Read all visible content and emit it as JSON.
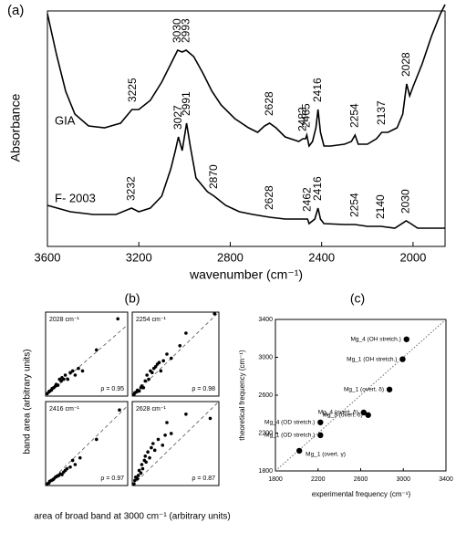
{
  "panel_b": {
    "label": "(b)",
    "ylabel": "band area (arbitrary units)",
    "xlabel": "area of broad band  at 3000 cm⁻¹ (arbitrary units)"
  },
  "chart_data": [
    {
      "type": "line",
      "panel_label": "(a)",
      "xlabel": "wavenumber (cm⁻¹)",
      "ylabel": "Absorbance",
      "xlim": [
        3600,
        1860
      ],
      "xticks": [
        3600,
        3200,
        2800,
        2400,
        2000
      ],
      "ylim": [
        0,
        258
      ],
      "series": [
        {
          "name": "GIA",
          "color": "#000000",
          "x": [
            3600,
            3560,
            3520,
            3480,
            3420,
            3350,
            3280,
            3230,
            3200,
            3150,
            3100,
            3060,
            3030,
            3010,
            2993,
            2960,
            2920,
            2880,
            2840,
            2780,
            2720,
            2680,
            2650,
            2628,
            2600,
            2560,
            2500,
            2482,
            2470,
            2465,
            2455,
            2440,
            2425,
            2416,
            2405,
            2390,
            2360,
            2300,
            2270,
            2254,
            2240,
            2200,
            2160,
            2137,
            2110,
            2070,
            2045,
            2028,
            2015,
            2000,
            1960,
            1920,
            1880,
            1860
          ],
          "values": [
            255,
            210,
            170,
            145,
            132,
            130,
            135,
            150,
            150,
            160,
            180,
            200,
            215,
            213,
            215,
            208,
            190,
            170,
            155,
            140,
            130,
            125,
            132,
            135,
            130,
            120,
            115,
            118,
            118,
            122,
            110,
            115,
            130,
            150,
            125,
            110,
            110,
            112,
            115,
            122,
            112,
            112,
            118,
            125,
            125,
            130,
            145,
            178,
            165,
            175,
            200,
            230,
            255,
            265
          ],
          "peak_labels": [
            3225,
            3030,
            2993,
            2628,
            2482,
            2465,
            2416,
            2254,
            2137,
            2028
          ]
        },
        {
          "name": "F- 2003",
          "color": "#000000",
          "x": [
            3600,
            3500,
            3400,
            3300,
            3232,
            3200,
            3150,
            3100,
            3060,
            3040,
            3027,
            3010,
            2991,
            2975,
            2950,
            2900,
            2870,
            2820,
            2760,
            2700,
            2628,
            2560,
            2500,
            2462,
            2455,
            2430,
            2416,
            2405,
            2390,
            2300,
            2254,
            2200,
            2140,
            2080,
            2030,
            2010,
            1980,
            1900,
            1860
          ],
          "values": [
            45,
            38,
            35,
            35,
            42,
            38,
            42,
            55,
            85,
            105,
            120,
            105,
            135,
            110,
            75,
            60,
            55,
            45,
            38,
            35,
            32,
            30,
            30,
            30,
            25,
            30,
            42,
            30,
            25,
            24,
            24,
            22,
            22,
            20,
            28,
            25,
            20,
            20,
            20
          ],
          "peak_labels": [
            3232,
            3027,
            2991,
            2870,
            2628,
            2462,
            2416,
            2254,
            2140,
            2030
          ]
        }
      ]
    },
    {
      "type": "scatter",
      "note": "2028 cm⁻¹",
      "stat": "ρ = 0.95",
      "xlim": [
        0,
        1
      ],
      "ylim": [
        0,
        1
      ],
      "x": [
        0.02,
        0.04,
        0.05,
        0.07,
        0.08,
        0.1,
        0.12,
        0.13,
        0.15,
        0.17,
        0.19,
        0.2,
        0.22,
        0.24,
        0.27,
        0.3,
        0.33,
        0.36,
        0.4,
        0.45,
        0.62,
        0.88
      ],
      "values": [
        0.03,
        0.05,
        0.06,
        0.07,
        0.09,
        0.1,
        0.12,
        0.14,
        0.13,
        0.2,
        0.18,
        0.22,
        0.2,
        0.25,
        0.2,
        0.28,
        0.3,
        0.25,
        0.33,
        0.3,
        0.55,
        0.92
      ],
      "fit": {
        "x": [
          0,
          1
        ],
        "y": [
          0,
          0.85
        ]
      }
    },
    {
      "type": "scatter",
      "note": "2254 cm⁻¹",
      "stat": "ρ = 0.98",
      "xlim": [
        0,
        1
      ],
      "ylim": [
        0,
        1
      ],
      "x": [
        0.02,
        0.03,
        0.05,
        0.06,
        0.08,
        0.1,
        0.11,
        0.13,
        0.15,
        0.17,
        0.19,
        0.21,
        0.23,
        0.25,
        0.27,
        0.29,
        0.31,
        0.33,
        0.36,
        0.4,
        0.45,
        0.55,
        0.62,
        0.95
      ],
      "values": [
        0.02,
        0.04,
        0.05,
        0.07,
        0.06,
        0.1,
        0.12,
        0.1,
        0.18,
        0.25,
        0.2,
        0.3,
        0.28,
        0.33,
        0.35,
        0.38,
        0.4,
        0.3,
        0.42,
        0.5,
        0.45,
        0.6,
        0.75,
        0.98
      ],
      "fit": {
        "x": [
          0,
          1
        ],
        "y": [
          0,
          1
        ]
      }
    },
    {
      "type": "scatter",
      "note": "2416 cm⁻¹",
      "stat": "ρ = 0.97",
      "xlim": [
        0,
        1
      ],
      "ylim": [
        0,
        1
      ],
      "x": [
        0.02,
        0.04,
        0.05,
        0.07,
        0.09,
        0.1,
        0.12,
        0.14,
        0.16,
        0.18,
        0.2,
        0.22,
        0.24,
        0.26,
        0.3,
        0.33,
        0.36,
        0.42,
        0.62,
        0.9
      ],
      "values": [
        0.02,
        0.03,
        0.05,
        0.06,
        0.07,
        0.08,
        0.1,
        0.11,
        0.12,
        0.14,
        0.13,
        0.16,
        0.18,
        0.2,
        0.22,
        0.3,
        0.25,
        0.33,
        0.55,
        0.9
      ],
      "fit": {
        "x": [
          0,
          1
        ],
        "y": [
          0,
          0.95
        ]
      }
    },
    {
      "type": "scatter",
      "note": "2628 cm⁻¹",
      "stat": "ρ = 0.87",
      "xlim": [
        0,
        1
      ],
      "ylim": [
        0,
        1
      ],
      "x": [
        0.02,
        0.03,
        0.04,
        0.06,
        0.07,
        0.08,
        0.1,
        0.11,
        0.12,
        0.14,
        0.15,
        0.16,
        0.18,
        0.2,
        0.22,
        0.24,
        0.26,
        0.3,
        0.35,
        0.38,
        0.4,
        0.45,
        0.62,
        0.9
      ],
      "values": [
        0.02,
        0.06,
        0.1,
        0.08,
        0.12,
        0.18,
        0.15,
        0.25,
        0.2,
        0.3,
        0.35,
        0.28,
        0.4,
        0.33,
        0.45,
        0.5,
        0.42,
        0.55,
        0.48,
        0.6,
        0.75,
        0.62,
        0.85,
        0.8
      ],
      "fit": {
        "x": [
          0,
          1
        ],
        "y": [
          0,
          1
        ]
      }
    },
    {
      "type": "scatter",
      "panel_label": "(c)",
      "xlabel": "experimental frequency (cm⁻¹)",
      "ylabel": "theoretical frequency (cm⁻¹)",
      "xlim": [
        1800,
        3400
      ],
      "ylim": [
        1800,
        3400
      ],
      "xticks": [
        1800,
        2200,
        2600,
        3000,
        3400
      ],
      "yticks": [
        1800,
        2200,
        2600,
        3000,
        3400
      ],
      "x": [
        3030,
        2993,
        2870,
        2628,
        2670,
        2222,
        2222,
        2024
      ],
      "values": [
        3190,
        2980,
        2660,
        2417,
        2390,
        2313,
        2177,
        2013
      ],
      "point_labels": [
        "Mg_4 (OH stretch.)",
        "Mg_1 (OH stretch.)",
        "Mg_1 (overt. δ)",
        "Mg_4 (overt. δ)",
        "Mg_3 (overt. δ)",
        "Mg_4 (OD stretch.)",
        "Mg_1 (OD stretch.)",
        "Mg_1 (overt. γ)"
      ]
    }
  ]
}
